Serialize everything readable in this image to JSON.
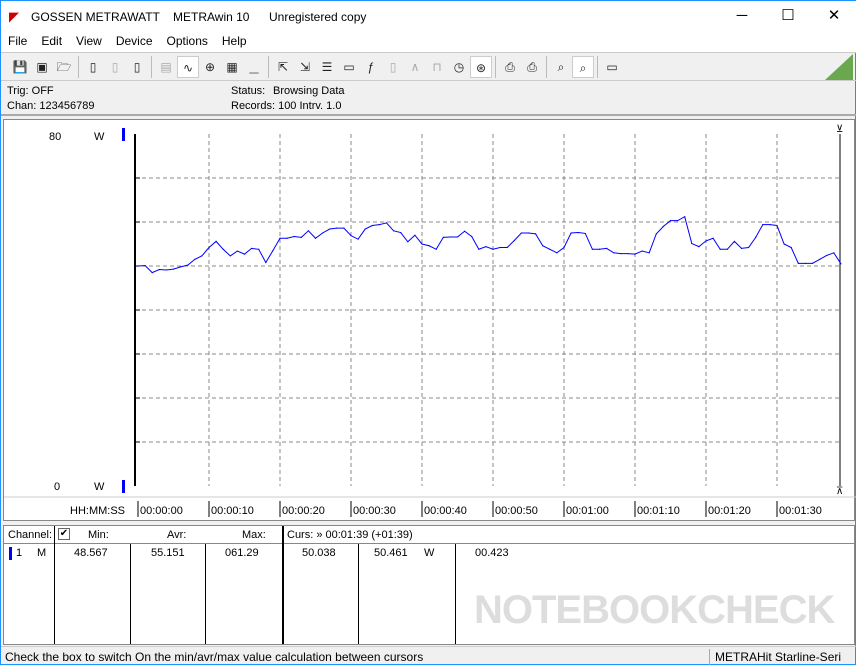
{
  "window": {
    "brand": "GOSSEN METRAWATT",
    "app": "METRAwin 10",
    "license": "Unregistered copy"
  },
  "menu": [
    "File",
    "Edit",
    "View",
    "Device",
    "Options",
    "Help"
  ],
  "toolbar": [
    {
      "icon": "save-icon",
      "state": "normal"
    },
    {
      "icon": "save-as-icon",
      "state": "normal"
    },
    {
      "icon": "open-folder-icon",
      "state": "normal"
    },
    "sep",
    {
      "icon": "device-read-icon",
      "state": "normal"
    },
    {
      "icon": "device-transfer-icon",
      "state": "disabled"
    },
    {
      "icon": "device-memory-icon",
      "state": "normal"
    },
    "sep",
    {
      "icon": "text-view-icon",
      "state": "disabled"
    },
    {
      "icon": "waveform-view-icon",
      "state": "active"
    },
    {
      "icon": "crosshair-icon",
      "state": "normal"
    },
    {
      "icon": "table-view-icon",
      "state": "normal"
    },
    {
      "icon": "histogram-icon",
      "state": "disabled"
    },
    "sep",
    {
      "icon": "export-icon",
      "state": "normal"
    },
    {
      "icon": "import-icon",
      "state": "normal"
    },
    {
      "icon": "list-export-icon",
      "state": "normal"
    },
    {
      "icon": "monitor-icon",
      "state": "normal"
    },
    {
      "icon": "function-icon",
      "state": "normal"
    },
    {
      "icon": "meter-icon",
      "state": "disabled"
    },
    {
      "icon": "signal-icon",
      "state": "disabled"
    },
    {
      "icon": "pulse-icon",
      "state": "disabled"
    },
    {
      "icon": "clock-icon",
      "state": "normal"
    },
    {
      "icon": "trigger-icon",
      "state": "active"
    },
    "sep",
    {
      "icon": "print-preview-icon",
      "state": "normal"
    },
    {
      "icon": "print-icon",
      "state": "normal"
    },
    "sep",
    {
      "icon": "zoom-icon",
      "state": "normal"
    },
    {
      "icon": "zoom-wave-icon",
      "state": "active"
    },
    "sep",
    {
      "icon": "comment-icon",
      "state": "normal"
    }
  ],
  "status": {
    "trig": "Trig: OFF",
    "chan": "Chan:  123456789",
    "status_label": "Status:",
    "status_value": "Browsing Data",
    "records": "Records: 100  Intrv. 1.0"
  },
  "chart_data": {
    "type": "line",
    "ylim": [
      0,
      80
    ],
    "y_top_label": "80",
    "y_bottom_label": "0",
    "y_unit": "W",
    "x_axis_label": "HH:MM:SS",
    "x_ticks": [
      "00:00:00",
      "00:00:10",
      "00:00:20",
      "00:00:30",
      "00:00:40",
      "00:00:50",
      "00:01:00",
      "00:01:10",
      "00:01:20",
      "00:01:30"
    ],
    "xlim_seconds": [
      0,
      99
    ],
    "grid": true,
    "line_color": "#0000ff",
    "series": [
      {
        "points": [
          [
            0,
            50.0
          ],
          [
            1,
            50.1
          ],
          [
            2,
            48.5
          ],
          [
            3,
            49.2
          ],
          [
            4,
            49.1
          ],
          [
            5,
            49.3
          ],
          [
            6,
            49.8
          ],
          [
            7,
            50.2
          ],
          [
            8,
            51.5
          ],
          [
            9,
            52.3
          ],
          [
            10,
            54.2
          ],
          [
            11,
            55.6
          ],
          [
            12,
            53.8
          ],
          [
            13,
            52.3
          ],
          [
            14,
            53.4
          ],
          [
            15,
            52.7
          ],
          [
            16,
            54.0
          ],
          [
            17,
            53.8
          ],
          [
            18,
            50.8
          ],
          [
            19,
            53.5
          ],
          [
            20,
            56.3
          ],
          [
            21,
            56.3
          ],
          [
            22,
            56.7
          ],
          [
            23,
            56.5
          ],
          [
            24,
            58.0
          ],
          [
            25,
            56.3
          ],
          [
            26,
            57.5
          ],
          [
            27,
            58.4
          ],
          [
            28,
            58.6
          ],
          [
            29,
            58.6
          ],
          [
            30,
            56.9
          ],
          [
            31,
            56.1
          ],
          [
            32,
            58.4
          ],
          [
            33,
            59.2
          ],
          [
            34,
            59.4
          ],
          [
            35,
            59.8
          ],
          [
            36,
            58.0
          ],
          [
            37,
            57.6
          ],
          [
            38,
            55.5
          ],
          [
            39,
            57.0
          ],
          [
            40,
            55.0
          ],
          [
            41,
            54.6
          ],
          [
            42,
            53.8
          ],
          [
            43,
            56.5
          ],
          [
            44,
            56.6
          ],
          [
            45,
            56.6
          ],
          [
            46,
            57.9
          ],
          [
            47,
            56.7
          ],
          [
            48,
            53.8
          ],
          [
            49,
            54.4
          ],
          [
            50,
            53.8
          ],
          [
            51,
            54.2
          ],
          [
            52,
            54.2
          ],
          [
            53,
            55.8
          ],
          [
            54,
            57.5
          ],
          [
            55,
            57.5
          ],
          [
            56,
            57.3
          ],
          [
            57,
            54.6
          ],
          [
            58,
            53.8
          ],
          [
            59,
            53.0
          ],
          [
            60,
            54.2
          ],
          [
            61,
            57.5
          ],
          [
            62,
            57.6
          ],
          [
            63,
            57.4
          ],
          [
            64,
            53.8
          ],
          [
            65,
            53.8
          ],
          [
            66,
            54.0
          ],
          [
            67,
            53.0
          ],
          [
            68,
            52.8
          ],
          [
            69,
            52.8
          ],
          [
            70,
            52.7
          ],
          [
            71,
            53.4
          ],
          [
            72,
            53.0
          ],
          [
            73,
            57.3
          ],
          [
            74,
            59.0
          ],
          [
            75,
            60.3
          ],
          [
            76,
            60.3
          ],
          [
            77,
            61.2
          ],
          [
            78,
            55.1
          ],
          [
            79,
            54.4
          ],
          [
            80,
            55.7
          ],
          [
            81,
            56.3
          ],
          [
            82,
            53.8
          ],
          [
            83,
            53.8
          ],
          [
            84,
            55.6
          ],
          [
            85,
            54.0
          ],
          [
            86,
            54.2
          ],
          [
            87,
            56.5
          ],
          [
            88,
            59.4
          ],
          [
            89,
            59.4
          ],
          [
            90,
            59.2
          ],
          [
            91,
            55.0
          ],
          [
            92,
            54.2
          ],
          [
            93,
            50.6
          ],
          [
            94,
            50.6
          ],
          [
            95,
            50.6
          ],
          [
            96,
            51.5
          ],
          [
            97,
            52.4
          ],
          [
            98,
            53.0
          ],
          [
            99,
            50.5
          ]
        ]
      }
    ]
  },
  "table": {
    "headers": {
      "channel": "Channel:",
      "min": "Min:",
      "avr": "Avr:",
      "max": "Max:",
      "curs": "Curs: » 00:01:39 (+01:39)"
    },
    "checkbox_checked": true,
    "rows": [
      {
        "num": "1",
        "type": "M",
        "min": "48.567",
        "avr": "55.151",
        "max": "061.29",
        "c1": "50.038",
        "c2": "50.461",
        "unit": "W",
        "diff": "00.423"
      }
    ]
  },
  "watermark": "NOTEBOOKCHECK",
  "statusbar": {
    "hint": "Check the box to switch On the min/avr/max value calculation between cursors",
    "device": "METRAHit Starline-Seri"
  }
}
